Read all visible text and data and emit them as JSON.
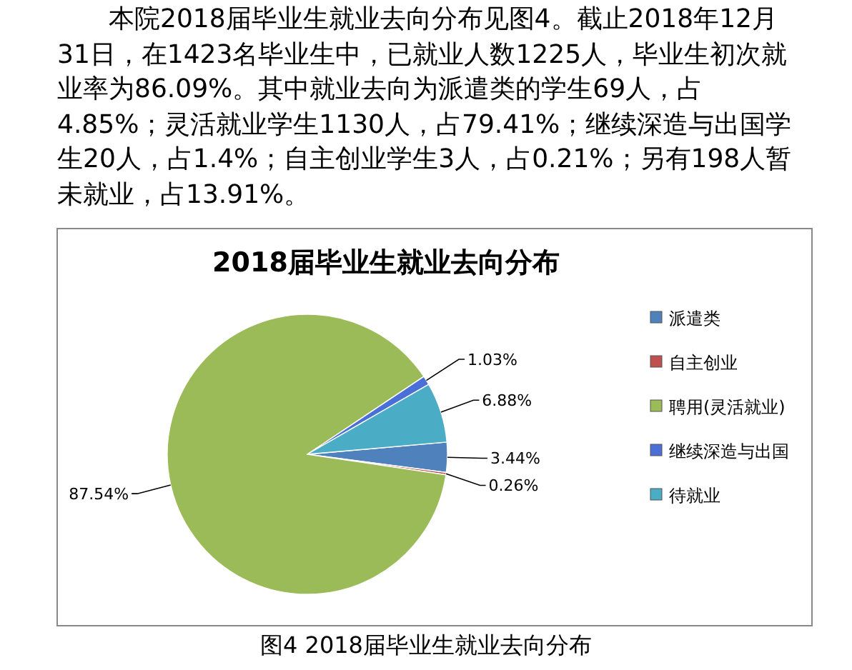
{
  "chart_data": {
    "type": "pie",
    "title": "2018届毕业生就业去向分布",
    "categories": [
      "派遣类",
      "自主创业",
      "聘用(灵活就业)",
      "继续深造与出国",
      "待就业"
    ],
    "values": [
      3.44,
      0.26,
      87.54,
      1.03,
      6.88
    ],
    "colors": [
      "#4f81bd",
      "#c0504d",
      "#9bbb59",
      "#4a6fd6",
      "#4bacc6"
    ],
    "value_labels": [
      "3.44%",
      "0.26%",
      "87.54%",
      "1.03%",
      "6.88%"
    ],
    "legend": "right",
    "annotations": [
      "本院2018届毕业生就业去向分布见图4。截止2018年12月31日，在1423名毕业生中，已就业人数1225人，毕业生初次就业率为86.09%。其中就业去向为派遣类的学生69人，占4.85%；灵活就业学生1130人，占79.41%；继续深造与出国学生20人，占1.4%；自主创业学生3人，占0.21%；另有198人暂未就业，占13.91%。",
      "图4  2018届毕业生就业去向分布"
    ]
  }
}
